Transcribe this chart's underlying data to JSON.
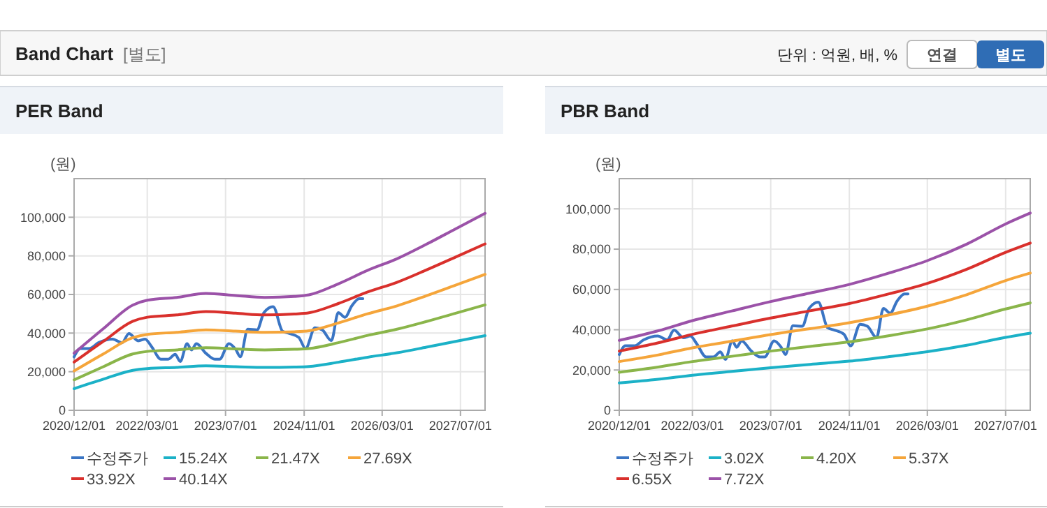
{
  "chart_data": [
    {
      "type": "line",
      "title": "PER Band",
      "ylabel": "(원)",
      "annotations": [
        "Band Chart",
        "[별도]",
        "단위 : 억원, 배, %",
        "연결",
        "별도"
      ],
      "xlim": [
        "2020-12-01",
        "2027-12-01"
      ],
      "ylim": [
        0,
        120000
      ],
      "xticks": [
        {
          "value": "2020-12-01",
          "label": "2020/12/01"
        },
        {
          "value": "2022-03-01",
          "label": "2022/03/01"
        },
        {
          "value": "2023-07-01",
          "label": "2023/07/01"
        },
        {
          "value": "2024-11-01",
          "label": "2024/11/01"
        },
        {
          "value": "2026-03-01",
          "label": "2026/03/01"
        },
        {
          "value": "2027-07-01",
          "label": "2027/07/01"
        }
      ],
      "yticks": [
        0,
        {
          "value": 20000,
          "label": "20,000"
        },
        {
          "value": 40000,
          "label": "40,000"
        },
        {
          "value": 60000,
          "label": "60,000"
        },
        {
          "value": 80000,
          "label": "80,000"
        },
        {
          "value": 100000,
          "label": "100,000"
        }
      ],
      "grid": true,
      "legend": "bottom",
      "marker": "none",
      "line_style": "solid",
      "series": [
        {
          "name": "수정주가",
          "color": "#3a75c4",
          "x": [
            "2020-12-01",
            "2021-01-08",
            "2021-03-05",
            "2021-05-02",
            "2021-07-28",
            "2021-09-25",
            "2021-11-07",
            "2022-01-04",
            "2022-02-16",
            "2022-03-28",
            "2022-05-25",
            "2022-07-10",
            "2022-08-22",
            "2022-09-22",
            "2022-11-04",
            "2022-12-01",
            "2023-01-01",
            "2023-02-28",
            "2023-04-25",
            "2023-05-25",
            "2023-07-22",
            "2023-09-04",
            "2023-10-01",
            "2023-11-16",
            "2024-01-13",
            "2024-02-25",
            "2024-04-22",
            "2024-06-19",
            "2024-08-01",
            "2024-09-28",
            "2024-11-10",
            "2025-01-07",
            "2025-02-21",
            "2025-04-19",
            "2025-06-01",
            "2025-07-13",
            "2025-08-25",
            "2025-10-10",
            "2025-11-01"
          ],
          "values": [
            27700,
            32000,
            32000,
            35000,
            36900,
            35000,
            39800,
            36000,
            36900,
            33000,
            26500,
            26500,
            29000,
            25300,
            34500,
            31300,
            34500,
            29600,
            26500,
            26500,
            34500,
            31300,
            27700,
            42000,
            41700,
            50600,
            53700,
            41000,
            39800,
            37800,
            32000,
            42700,
            41700,
            36100,
            50600,
            48200,
            54200,
            57800,
            57800
          ]
        },
        {
          "name": "15.24X",
          "color": "#1bb1c7",
          "x": [
            "2020-12-01",
            "2021-06-01",
            "2021-12-01",
            "2022-03-01",
            "2022-09-01",
            "2023-03-01",
            "2023-09-01",
            "2024-03-01",
            "2024-09-01",
            "2024-12-01",
            "2025-06-01",
            "2025-12-01",
            "2026-06-01",
            "2026-12-01",
            "2027-06-01",
            "2027-12-01"
          ],
          "values": [
            11200,
            16100,
            20700,
            21600,
            22200,
            23000,
            22600,
            22200,
            22400,
            22700,
            24900,
            27500,
            29800,
            32700,
            35700,
            38700
          ]
        },
        {
          "name": "21.47X",
          "color": "#8ab54a",
          "x": [
            "2020-12-01",
            "2021-06-01",
            "2021-12-01",
            "2022-03-01",
            "2022-09-01",
            "2023-03-01",
            "2023-09-01",
            "2024-03-01",
            "2024-09-01",
            "2024-12-01",
            "2025-06-01",
            "2025-12-01",
            "2026-06-01",
            "2026-12-01",
            "2027-06-01",
            "2027-12-01"
          ],
          "values": [
            15800,
            22600,
            29200,
            30500,
            31300,
            32400,
            31800,
            31300,
            31600,
            32000,
            35000,
            38800,
            42000,
            46000,
            50300,
            54600
          ]
        },
        {
          "name": "27.69X",
          "color": "#f5a53a",
          "x": [
            "2020-12-01",
            "2021-06-01",
            "2021-12-01",
            "2022-03-01",
            "2022-09-01",
            "2023-03-01",
            "2023-09-01",
            "2024-03-01",
            "2024-09-01",
            "2024-12-01",
            "2025-06-01",
            "2025-12-01",
            "2026-06-01",
            "2026-12-01",
            "2027-06-01",
            "2027-12-01"
          ],
          "values": [
            20400,
            29200,
            37600,
            39300,
            40400,
            41700,
            41000,
            40400,
            40700,
            41200,
            45200,
            50000,
            54100,
            59300,
            64800,
            70400
          ]
        },
        {
          "name": "33.92X",
          "color": "#d9302c",
          "x": [
            "2020-12-01",
            "2021-06-01",
            "2021-12-01",
            "2022-03-01",
            "2022-09-01",
            "2023-03-01",
            "2023-09-01",
            "2024-03-01",
            "2024-09-01",
            "2024-12-01",
            "2025-06-01",
            "2025-12-01",
            "2026-06-01",
            "2026-12-01",
            "2027-06-01",
            "2027-12-01"
          ],
          "values": [
            25000,
            35700,
            46100,
            48200,
            49400,
            51100,
            50300,
            49400,
            49900,
            50500,
            55300,
            61300,
            66300,
            72700,
            79400,
            86200
          ]
        },
        {
          "name": "40.14X",
          "color": "#9b52a8",
          "x": [
            "2020-12-01",
            "2021-06-01",
            "2021-12-01",
            "2022-03-01",
            "2022-09-01",
            "2023-03-01",
            "2023-09-01",
            "2024-03-01",
            "2024-09-01",
            "2024-12-01",
            "2025-06-01",
            "2025-12-01",
            "2026-06-01",
            "2026-12-01",
            "2027-06-01",
            "2027-12-01"
          ],
          "values": [
            29600,
            42300,
            54500,
            57000,
            58500,
            60500,
            59500,
            58500,
            59000,
            59800,
            65500,
            72500,
            78500,
            86000,
            94000,
            102000
          ]
        }
      ]
    },
    {
      "type": "line",
      "title": "PBR Band",
      "ylabel": "(원)",
      "xlim": [
        "2020-12-01",
        "2027-12-01"
      ],
      "ylim": [
        0,
        115000
      ],
      "xticks": [
        {
          "value": "2020-12-01",
          "label": "2020/12/01"
        },
        {
          "value": "2022-03-01",
          "label": "2022/03/01"
        },
        {
          "value": "2023-07-01",
          "label": "2023/07/01"
        },
        {
          "value": "2024-11-01",
          "label": "2024/11/01"
        },
        {
          "value": "2026-03-01",
          "label": "2026/03/01"
        },
        {
          "value": "2027-07-01",
          "label": "2027/07/01"
        }
      ],
      "yticks": [
        0,
        {
          "value": 20000,
          "label": "20,000"
        },
        {
          "value": 40000,
          "label": "40,000"
        },
        {
          "value": 60000,
          "label": "60,000"
        },
        {
          "value": 80000,
          "label": "80,000"
        },
        {
          "value": 100000,
          "label": "100,000"
        }
      ],
      "grid": true,
      "legend": "bottom",
      "marker": "none",
      "line_style": "solid",
      "series": [
        {
          "name": "수정주가",
          "color": "#3a75c4",
          "x": [
            "2020-12-01",
            "2021-01-08",
            "2021-03-05",
            "2021-05-02",
            "2021-07-28",
            "2021-09-25",
            "2021-11-07",
            "2022-01-04",
            "2022-02-16",
            "2022-03-28",
            "2022-05-25",
            "2022-07-10",
            "2022-08-22",
            "2022-09-22",
            "2022-11-04",
            "2022-12-01",
            "2023-01-01",
            "2023-02-28",
            "2023-04-25",
            "2023-05-25",
            "2023-07-22",
            "2023-09-04",
            "2023-10-01",
            "2023-11-16",
            "2024-01-13",
            "2024-02-25",
            "2024-04-22",
            "2024-06-19",
            "2024-08-01",
            "2024-09-28",
            "2024-11-10",
            "2025-01-07",
            "2025-02-21",
            "2025-04-19",
            "2025-06-01",
            "2025-07-13",
            "2025-08-25",
            "2025-10-10",
            "2025-11-01"
          ],
          "values": [
            27700,
            32000,
            32000,
            35000,
            36900,
            35000,
            39800,
            36000,
            36900,
            33000,
            26500,
            26500,
            29000,
            25300,
            34500,
            31300,
            34500,
            29600,
            26500,
            26500,
            34500,
            31300,
            27700,
            42000,
            41700,
            50600,
            53700,
            41000,
            39800,
            37800,
            32000,
            42700,
            41700,
            36100,
            50600,
            48200,
            54200,
            57800,
            57800
          ]
        },
        {
          "name": "3.02X",
          "color": "#1bb1c7",
          "x": [
            "2020-12-01",
            "2021-08-01",
            "2022-03-01",
            "2022-11-01",
            "2023-07-01",
            "2024-03-01",
            "2024-11-01",
            "2025-07-01",
            "2026-03-01",
            "2026-11-01",
            "2027-07-01",
            "2027-12-01"
          ],
          "values": [
            13600,
            15400,
            17400,
            19300,
            21100,
            22800,
            24400,
            26600,
            29100,
            32300,
            36200,
            38300
          ]
        },
        {
          "name": "4.20X",
          "color": "#8ab54a",
          "x": [
            "2020-12-01",
            "2021-08-01",
            "2022-03-01",
            "2022-11-01",
            "2023-07-01",
            "2024-03-01",
            "2024-11-01",
            "2025-07-01",
            "2026-03-01",
            "2026-11-01",
            "2027-07-01",
            "2027-12-01"
          ],
          "values": [
            18900,
            21500,
            24200,
            26800,
            29400,
            31700,
            34000,
            37000,
            40400,
            44900,
            50300,
            53300
          ]
        },
        {
          "name": "5.37X",
          "color": "#f5a53a",
          "x": [
            "2020-12-01",
            "2021-08-01",
            "2022-03-01",
            "2022-11-01",
            "2023-07-01",
            "2024-03-01",
            "2024-11-01",
            "2025-07-01",
            "2026-03-01",
            "2026-11-01",
            "2027-07-01",
            "2027-12-01"
          ],
          "values": [
            24200,
            27500,
            31000,
            34300,
            37600,
            40500,
            43500,
            47300,
            51700,
            57400,
            64400,
            68100
          ]
        },
        {
          "name": "6.55X",
          "color": "#d9302c",
          "x": [
            "2020-12-01",
            "2021-08-01",
            "2022-03-01",
            "2022-11-01",
            "2023-07-01",
            "2024-03-01",
            "2024-11-01",
            "2025-07-01",
            "2026-03-01",
            "2026-11-01",
            "2027-07-01",
            "2027-12-01"
          ],
          "values": [
            29400,
            33500,
            37700,
            41800,
            45800,
            49400,
            53000,
            57700,
            63000,
            70000,
            78400,
            83000
          ]
        },
        {
          "name": "7.72X",
          "color": "#9b52a8",
          "x": [
            "2020-12-01",
            "2021-08-01",
            "2022-03-01",
            "2022-11-01",
            "2023-07-01",
            "2024-03-01",
            "2024-11-01",
            "2025-07-01",
            "2026-03-01",
            "2026-11-01",
            "2027-07-01",
            "2027-12-01"
          ],
          "values": [
            34700,
            39500,
            44500,
            49300,
            54000,
            58200,
            62500,
            68000,
            74300,
            82500,
            92500,
            97900
          ]
        }
      ]
    }
  ]
}
